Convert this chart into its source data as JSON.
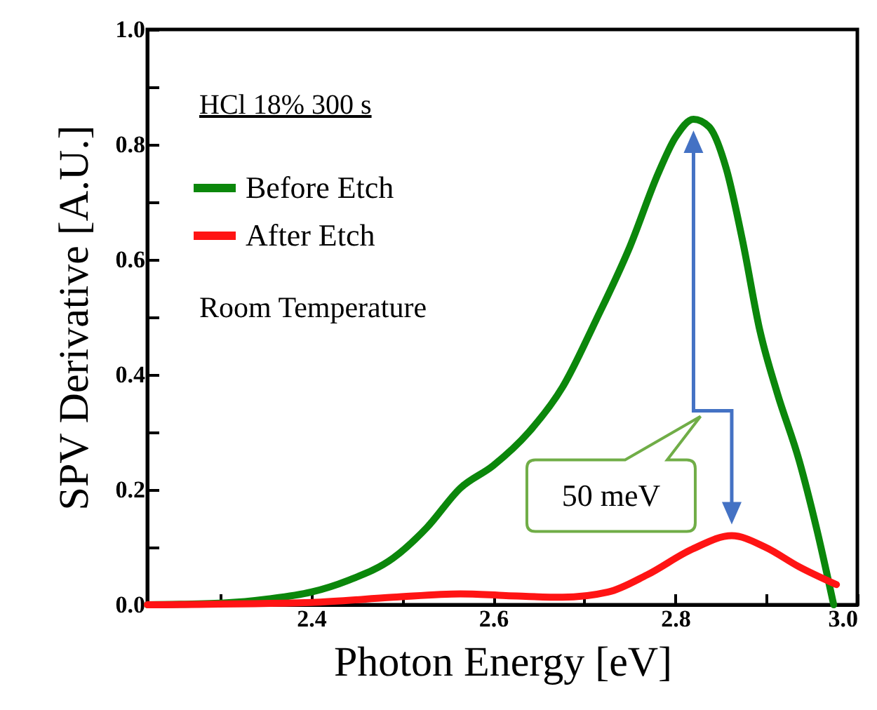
{
  "chart_data": {
    "type": "line",
    "xlabel": "Photon Energy [eV]",
    "ylabel": "SPV Derivative [A.U.]",
    "annotations": [
      "HCl 18% 300 s",
      "Room Temperature",
      "50 meV"
    ],
    "xlim": [
      2.22,
      3.0
    ],
    "ylim": [
      0,
      1.0
    ],
    "xticks": [
      {
        "value": 2.3,
        "label": null
      },
      2.4,
      {
        "value": 2.5,
        "label": null
      },
      2.6,
      {
        "value": 2.7,
        "label": null
      },
      2.8,
      {
        "value": 2.9,
        "label": null
      },
      {
        "value": 3,
        "label": "3.0"
      }
    ],
    "yticks": [
      {
        "value": 0,
        "label": "0.0"
      },
      {
        "value": 0.1,
        "label": null
      },
      0.2,
      {
        "value": 0.3,
        "label": null
      },
      0.4,
      {
        "value": 0.5,
        "label": null
      },
      0.6,
      {
        "value": 0.7,
        "label": null
      },
      0.8,
      {
        "value": 0.9,
        "label": null
      },
      {
        "value": 1,
        "label": "1.0"
      }
    ],
    "grid": false,
    "legend": "top left",
    "line_style": "solid",
    "series": [
      {
        "name": "Before Etch",
        "color": "#0b870b",
        "x": [
          2.22,
          2.304,
          2.353,
          2.4,
          2.44,
          2.49,
          2.527,
          2.564,
          2.6,
          2.639,
          2.676,
          2.713,
          2.75,
          2.781,
          2.8,
          2.82,
          2.837,
          2.856,
          2.874,
          2.893,
          2.912,
          2.936,
          2.955,
          2.974
        ],
        "values": [
          0,
          0.003,
          0.01,
          0.022,
          0.042,
          0.081,
          0.134,
          0.203,
          0.242,
          0.3,
          0.378,
          0.495,
          0.622,
          0.749,
          0.812,
          0.844,
          0.831,
          0.758,
          0.632,
          0.476,
          0.368,
          0.251,
          0.134,
          0
        ]
      },
      {
        "name": "After Etch",
        "color": "#ff1414",
        "x": [
          2.22,
          2.4,
          2.49,
          2.564,
          2.614,
          2.676,
          2.726,
          2.769,
          2.819,
          2.862,
          2.899,
          2.936,
          2.977
        ],
        "values": [
          0,
          0.004,
          0.013,
          0.019,
          0.016,
          0.013,
          0.022,
          0.052,
          0.097,
          0.12,
          0.1,
          0.066,
          0.035
        ]
      }
    ]
  }
}
